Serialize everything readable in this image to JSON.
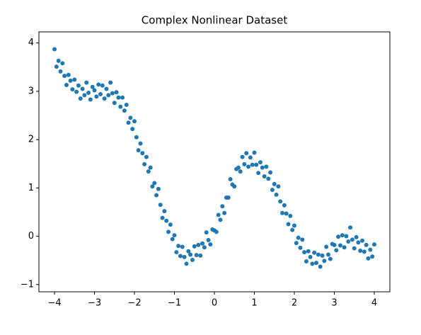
{
  "chart_data": {
    "type": "scatter",
    "title": "Complex Nonlinear Dataset",
    "color": "#1f77b4",
    "xlim": [
      -4.39,
      4.39
    ],
    "ylim": [
      -1.15,
      4.23
    ],
    "xticks": [
      {
        "value": -4,
        "label": "−4"
      },
      {
        "value": -3,
        "label": "−3"
      },
      {
        "value": -2,
        "label": "−2"
      },
      {
        "value": -1,
        "label": "−1"
      },
      0,
      1,
      2,
      3,
      4
    ],
    "yticks": [
      {
        "value": -1,
        "label": "−1"
      },
      0,
      1,
      2,
      3,
      4
    ],
    "x": [
      -4.0,
      -3.95,
      -3.9,
      -3.85,
      -3.8,
      -3.75,
      -3.7,
      -3.65,
      -3.6,
      -3.55,
      -3.5,
      -3.45,
      -3.4,
      -3.35,
      -3.3,
      -3.25,
      -3.2,
      -3.15,
      -3.1,
      -3.05,
      -3.0,
      -2.95,
      -2.9,
      -2.85,
      -2.8,
      -2.75,
      -2.7,
      -2.65,
      -2.6,
      -2.55,
      -2.5,
      -2.45,
      -2.4,
      -2.35,
      -2.3,
      -2.25,
      -2.2,
      -2.15,
      -2.1,
      -2.05,
      -2.0,
      -1.95,
      -1.9,
      -1.85,
      -1.8,
      -1.75,
      -1.7,
      -1.65,
      -1.6,
      -1.55,
      -1.5,
      -1.45,
      -1.4,
      -1.35,
      -1.3,
      -1.25,
      -1.2,
      -1.15,
      -1.1,
      -1.05,
      -1.0,
      -0.95,
      -0.9,
      -0.85,
      -0.8,
      -0.75,
      -0.7,
      -0.65,
      -0.6,
      -0.55,
      -0.5,
      -0.45,
      -0.4,
      -0.35,
      -0.3,
      -0.25,
      -0.2,
      -0.15,
      -0.1,
      -0.05,
      0.0,
      0.05,
      0.1,
      0.15,
      0.2,
      0.25,
      0.3,
      0.35,
      0.4,
      0.45,
      0.5,
      0.55,
      0.6,
      0.65,
      0.7,
      0.75,
      0.8,
      0.85,
      0.9,
      0.95,
      1.0,
      1.05,
      1.1,
      1.15,
      1.2,
      1.25,
      1.3,
      1.35,
      1.4,
      1.45,
      1.5,
      1.55,
      1.6,
      1.65,
      1.7,
      1.75,
      1.8,
      1.85,
      1.9,
      1.95,
      2.0,
      2.05,
      2.1,
      2.15,
      2.2,
      2.25,
      2.3,
      2.35,
      2.4,
      2.45,
      2.5,
      2.55,
      2.6,
      2.65,
      2.7,
      2.75,
      2.8,
      2.85,
      2.9,
      2.95,
      3.0,
      3.05,
      3.1,
      3.15,
      3.2,
      3.25,
      3.3,
      3.35,
      3.4,
      3.45,
      3.5,
      3.55,
      3.6,
      3.65,
      3.7,
      3.75,
      3.8,
      3.85,
      3.9,
      3.95,
      4.0
    ],
    "values": [
      3.87,
      3.51,
      3.63,
      3.41,
      3.58,
      3.32,
      3.13,
      3.34,
      3.22,
      3.04,
      3.24,
      2.99,
      3.12,
      2.85,
      3.05,
      2.92,
      3.18,
      2.97,
      2.83,
      3.09,
      3.02,
      2.89,
      3.14,
      2.94,
      3.12,
      2.85,
      3.05,
      2.92,
      3.18,
      2.96,
      2.76,
      2.98,
      2.87,
      2.68,
      2.87,
      2.6,
      2.72,
      2.35,
      2.45,
      2.22,
      2.38,
      2.05,
      1.78,
      1.92,
      1.72,
      1.49,
      1.64,
      1.34,
      1.42,
      1.03,
      1.1,
      0.85,
      0.98,
      0.65,
      0.38,
      0.52,
      0.32,
      0.09,
      0.24,
      -0.06,
      0.02,
      -0.33,
      -0.2,
      -0.41,
      -0.22,
      -0.43,
      -0.57,
      -0.31,
      -0.38,
      -0.49,
      -0.21,
      -0.39,
      -0.18,
      -0.4,
      -0.15,
      -0.23,
      0.08,
      -0.08,
      -0.17,
      0.14,
      0.12,
      0.09,
      0.44,
      0.34,
      0.62,
      0.48,
      0.8,
      0.8,
      1.18,
      1.07,
      1.03,
      1.39,
      1.42,
      1.34,
      1.64,
      1.49,
      1.72,
      1.44,
      1.63,
      1.48,
      1.73,
      1.48,
      1.31,
      1.53,
      1.42,
      1.24,
      1.44,
      1.19,
      1.32,
      0.96,
      1.08,
      0.86,
      1.03,
      0.72,
      0.48,
      0.64,
      0.47,
      0.25,
      0.42,
      0.13,
      0.22,
      -0.14,
      -0.03,
      -0.24,
      -0.07,
      -0.33,
      -0.52,
      -0.31,
      -0.43,
      -0.57,
      -0.34,
      -0.55,
      -0.38,
      -0.63,
      -0.4,
      -0.51,
      -0.22,
      -0.38,
      -0.47,
      -0.16,
      -0.18,
      -0.29,
      -0.01,
      -0.19,
      0.02,
      -0.23,
      0.0,
      -0.11,
      0.18,
      -0.07,
      -0.25,
      -0.02,
      -0.13,
      -0.3,
      -0.09,
      -0.32,
      -0.18,
      -0.46,
      -0.28,
      -0.42,
      -0.17
    ]
  }
}
